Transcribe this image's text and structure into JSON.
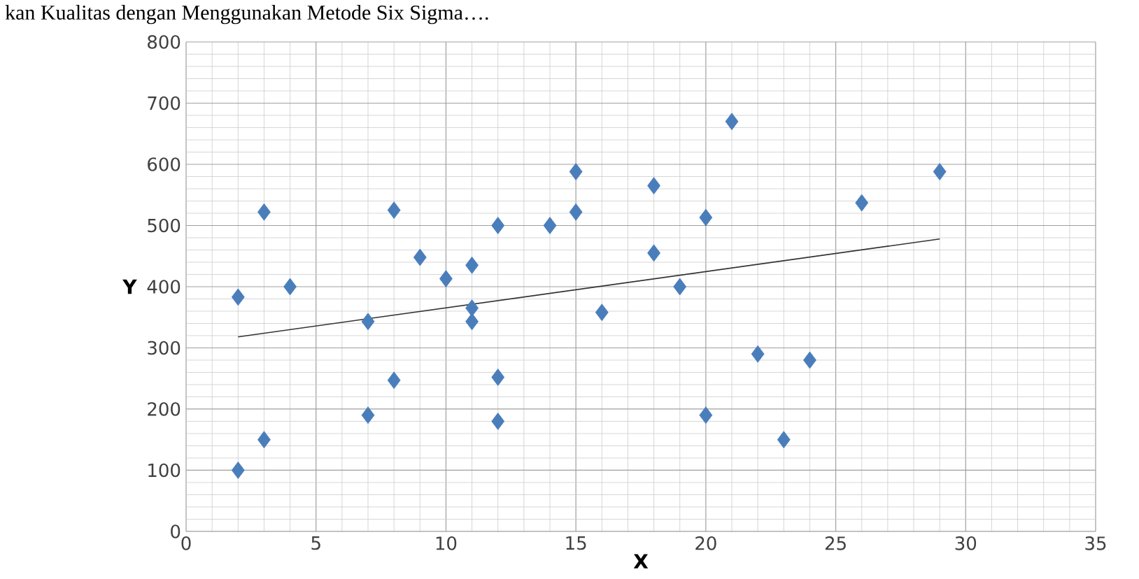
{
  "chart_data": {
    "type": "scatter",
    "xlabel": "X",
    "ylabel": "Y",
    "annotations": [
      "kan Kualitas dengan Menggunakan Metode Six Sigma…."
    ],
    "xlim": [
      0,
      35
    ],
    "xticks": [
      0,
      5,
      10,
      15,
      20,
      25,
      30,
      35
    ],
    "ylim": [
      0,
      800
    ],
    "yticks": [
      0,
      100,
      200,
      300,
      400,
      500,
      600,
      700,
      800
    ],
    "grid": true,
    "marker": "diamond",
    "series": [
      {
        "color": "#4a7ebb",
        "x": [
          2,
          2,
          3,
          3,
          4,
          7,
          7,
          8,
          8,
          9,
          10,
          11,
          11,
          11,
          12,
          12,
          12,
          14,
          15,
          15,
          16,
          18,
          18,
          19,
          20,
          20,
          21,
          22,
          23,
          24,
          26,
          29
        ],
        "values": [
          383,
          100,
          522,
          150,
          400,
          343,
          190,
          525,
          247,
          448,
          413,
          435,
          365,
          343,
          500,
          252,
          180,
          500,
          588,
          522,
          358,
          565,
          455,
          400,
          513,
          190,
          670,
          290,
          150,
          280,
          537,
          588
        ]
      },
      {
        "type": "line",
        "color": "#333333",
        "marker": "none",
        "line_style": "solid",
        "x": [
          2,
          29
        ],
        "values": [
          318,
          478
        ]
      }
    ]
  }
}
